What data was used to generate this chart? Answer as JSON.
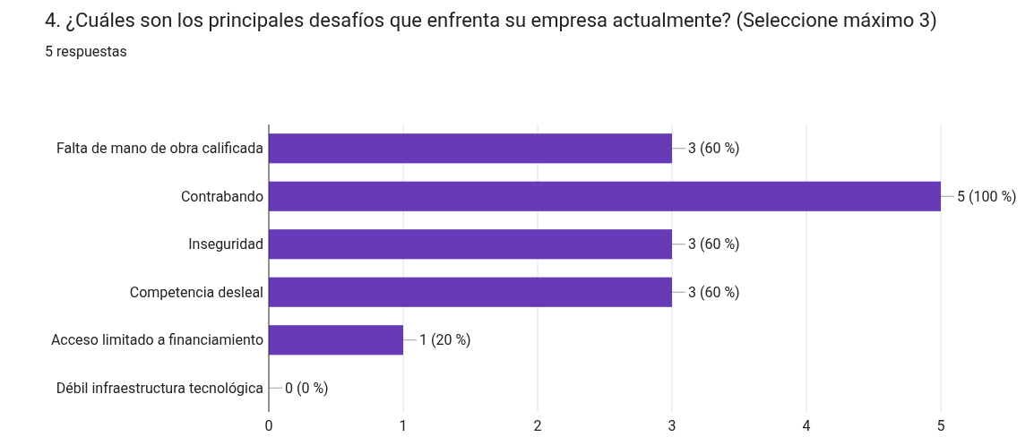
{
  "chart_data": {
    "type": "bar",
    "orientation": "horizontal",
    "title": "4. ¿Cuáles son los principales desafíos que enfrenta su empresa actualmente? (Seleccione máximo 3)",
    "subtitle": "5 respuestas",
    "categories": [
      "Falta de mano de obra calificada",
      "Contrabando",
      "Inseguridad",
      "Competencia desleal",
      "Acceso limitado a financiamiento",
      "Débil infraestructura tecnológica"
    ],
    "values": [
      3,
      5,
      3,
      3,
      1,
      0
    ],
    "value_labels": [
      "3 (60 %)",
      "5 (100 %)",
      "3 (60 %)",
      "3 (60 %)",
      "1 (20 %)",
      "0 (0 %)"
    ],
    "color": "#673ab7",
    "xlim": [
      0,
      5
    ],
    "xticks": [
      0,
      1,
      2,
      3,
      4,
      5
    ],
    "grid": "x"
  }
}
